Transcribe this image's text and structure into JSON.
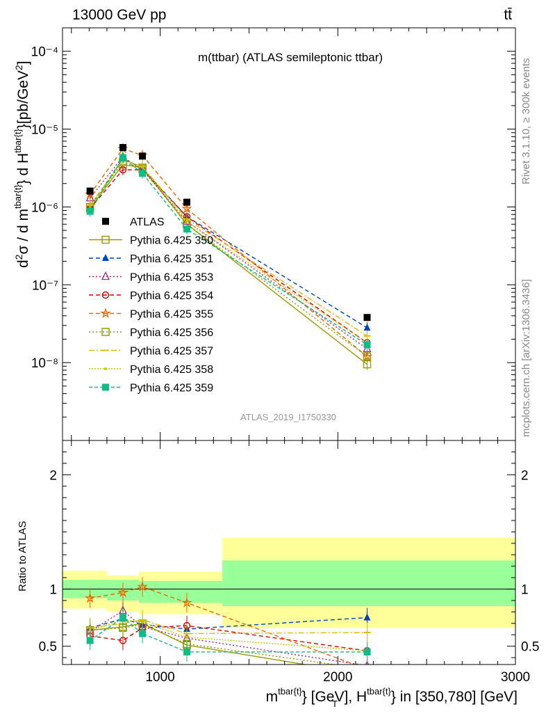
{
  "header": {
    "energy": "13000 GeV pp",
    "process": "tt̄"
  },
  "side": {
    "rivet": "Rivet 3.1.10, ≥ 300k events",
    "source": "mcplots.cern.ch [arXiv:1306.3436]"
  },
  "chart_data": [
    {
      "type": "scatter",
      "title": "m(ttbar) (ATLAS semileptonic ttbar)",
      "watermark": "ATLAS_2019_I1750330",
      "ylabel": "d²σ / d m^tbar{t} d H_T^tbar{t} [pb/GeV²]",
      "yscale": "log",
      "ylim": [
        1e-09,
        0.0002
      ],
      "xlim": [
        450,
        3000
      ],
      "ytick_labels": [
        "10⁻⁸",
        "10⁻⁷",
        "10⁻⁶",
        "10⁻⁵",
        "10⁻⁴"
      ],
      "legend_position": "center-left",
      "data": {
        "name": "ATLAS",
        "x": [
          605,
          790,
          900,
          1150,
          2165
        ],
        "y": [
          1.6e-06,
          5.8e-06,
          4.5e-06,
          1.15e-06,
          3.8e-08
        ]
      },
      "series": [
        {
          "name": "Pythia 6.425 350",
          "color": "#999900",
          "marker": "square-open",
          "dash": "solid",
          "y": [
            9.6e-07,
            3.5e-06,
            3.2e-06,
            6e-07,
            9.5e-09
          ]
        },
        {
          "name": "Pythia 6.425 351",
          "color": "#0044bb",
          "marker": "triangle",
          "dash": "6,4",
          "y": [
            1e-06,
            4.2e-06,
            3.1e-06,
            7.5e-07,
            2.8e-08
          ]
        },
        {
          "name": "Pythia 6.425 353",
          "color": "#aa2288",
          "marker": "triangle-open",
          "dash": "2,3",
          "y": [
            1.3e-06,
            4.4e-06,
            3e-06,
            6.5e-07,
            1.5e-08
          ]
        },
        {
          "name": "Pythia 6.425 354",
          "color": "#dd0000",
          "marker": "circle-open",
          "dash": "6,4",
          "y": [
            9.5e-07,
            3e-06,
            3e-06,
            7.5e-07,
            1.8e-08
          ]
        },
        {
          "name": "Pythia 6.425 355",
          "color": "#ee6600",
          "marker": "star",
          "dash": "6,4",
          "y": [
            1.45e-06,
            5.6e-06,
            4.6e-06,
            9.5e-07,
            1.2e-08
          ]
        },
        {
          "name": "Pythia 6.425 356",
          "color": "#889900",
          "marker": "square-open",
          "dash": "2,3",
          "y": [
            1e-06,
            3.8e-06,
            3.1e-06,
            6e-07,
            1.2e-08
          ]
        },
        {
          "name": "Pythia 6.425 357",
          "color": "#ddbb00",
          "marker": "dash",
          "dash": "8,3,2,3",
          "y": [
            1.05e-06,
            4e-06,
            3.3e-06,
            7e-07,
            2.2e-08
          ]
        },
        {
          "name": "Pythia 6.425 358",
          "color": "#bbcc00",
          "marker": "dot",
          "dash": "2,2",
          "y": [
            1e-06,
            4.1e-06,
            3.2e-06,
            6.5e-07,
            1.8e-08
          ]
        },
        {
          "name": "Pythia 6.425 359",
          "color": "#11bb88",
          "marker": "square",
          "dash": "5,3",
          "y": [
            8.8e-07,
            4.3e-06,
            2.7e-06,
            5.2e-07,
            1.7e-08
          ]
        }
      ]
    },
    {
      "type": "scatter",
      "ylabel": "Ratio to ATLAS",
      "xlabel": "m^tbar{t} [GeV], H_T^tbar{t} in [350,780] [GeV]",
      "xlim": [
        450,
        3000
      ],
      "ylim": [
        0.34,
        2.3
      ],
      "x_ticks": [
        1000,
        2000,
        3000
      ],
      "y_ticks": [
        0.5,
        1,
        2
      ],
      "x": [
        605,
        790,
        900,
        1150,
        2165
      ],
      "bands": [
        {
          "x0": 450,
          "x1": 700,
          "yellow": [
            0.83,
            1.16
          ],
          "green": [
            0.92,
            1.08
          ]
        },
        {
          "x0": 700,
          "x1": 880,
          "yellow": [
            0.8,
            1.12
          ],
          "green": [
            0.9,
            1.08
          ]
        },
        {
          "x0": 880,
          "x1": 1350,
          "yellow": [
            0.78,
            1.15
          ],
          "green": [
            0.88,
            1.07
          ]
        },
        {
          "x0": 1350,
          "x1": 3000,
          "yellow": [
            0.66,
            1.45
          ],
          "green": [
            0.85,
            1.25
          ]
        }
      ],
      "series": [
        {
          "name": "Pythia 6.425 350",
          "y": [
            0.64,
            0.67,
            0.7,
            0.51,
            0.25
          ]
        },
        {
          "name": "Pythia 6.425 351",
          "y": [
            0.66,
            0.74,
            0.69,
            0.65,
            0.75
          ]
        },
        {
          "name": "Pythia 6.425 353",
          "y": [
            0.63,
            0.81,
            0.67,
            0.57,
            0.33
          ]
        },
        {
          "name": "Pythia 6.425 354",
          "y": [
            0.59,
            0.55,
            0.66,
            0.68,
            0.46
          ]
        },
        {
          "name": "Pythia 6.425 355",
          "y": [
            0.92,
            0.97,
            1.02,
            0.88,
            0.3
          ]
        },
        {
          "name": "Pythia 6.425 356",
          "y": [
            0.64,
            0.66,
            0.69,
            0.52,
            0.3
          ]
        },
        {
          "name": "Pythia 6.425 357",
          "y": [
            0.66,
            0.7,
            0.73,
            0.61,
            0.62
          ]
        },
        {
          "name": "Pythia 6.425 358",
          "y": [
            0.64,
            0.73,
            0.71,
            0.58,
            0.46
          ]
        },
        {
          "name": "Pythia 6.425 359",
          "y": [
            0.55,
            0.75,
            0.61,
            0.45,
            0.45
          ]
        }
      ]
    }
  ]
}
